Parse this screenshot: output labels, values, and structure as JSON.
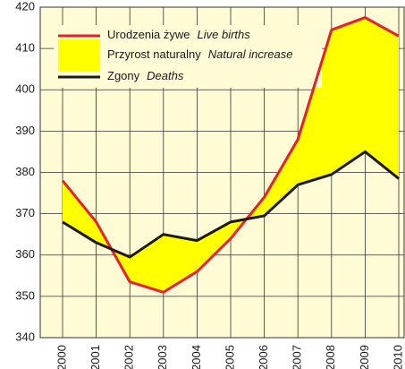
{
  "chart_data": {
    "type": "line",
    "categories": [
      "2000",
      "2001",
      "2002",
      "2003",
      "2004",
      "2005",
      "2006",
      "2007",
      "2008",
      "2009",
      "2010"
    ],
    "series": [
      {
        "name": "Urodzenia żywe",
        "name_en": "Live births",
        "color": "#e8202a",
        "values": [
          378,
          368,
          353.5,
          351,
          356,
          364,
          374,
          388,
          414.5,
          417.5,
          413
        ]
      },
      {
        "name": "Zgony",
        "name_en": "Deaths",
        "color": "#1a1a1a",
        "values": [
          368,
          363,
          359.5,
          365,
          363.5,
          368,
          369.5,
          377,
          379.5,
          385,
          378.5
        ]
      }
    ],
    "area": {
      "name": "Przyrost naturalny",
      "name_en": "Natural increase",
      "color": "#ffff00"
    },
    "ylim": [
      340,
      420
    ],
    "yticks": [
      340,
      350,
      360,
      370,
      380,
      390,
      400,
      410,
      420
    ],
    "grid": true,
    "background": "#fffbd5"
  }
}
